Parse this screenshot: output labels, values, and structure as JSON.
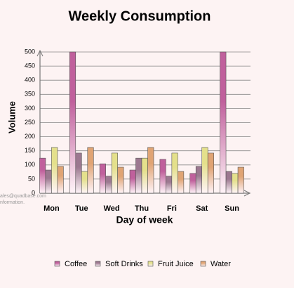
{
  "chart_data": {
    "type": "bar",
    "title": "Weekly Consumption",
    "x_label": "Day of week",
    "y_label": "Volume",
    "categories": [
      "Mon",
      "Tue",
      "Wed",
      "Thu",
      "Fri",
      "Sat",
      "Sun"
    ],
    "series": [
      {
        "name": "Coffee",
        "color": "#c0609c",
        "values": [
          124,
          500,
          104,
          82,
          120,
          70,
          500
        ]
      },
      {
        "name": "Soft Drinks",
        "color": "#9c7890",
        "values": [
          82,
          142,
          60,
          124,
          60,
          95,
          77
        ]
      },
      {
        "name": "Fruit Juice",
        "color": "#e4e08c",
        "values": [
          162,
          77,
          142,
          124,
          142,
          162,
          70
        ]
      },
      {
        "name": "Water",
        "color": "#e0a474",
        "values": [
          95,
          162,
          92,
          162,
          77,
          142,
          92
        ]
      }
    ],
    "ylim": [
      0,
      500
    ],
    "yticks": [
      0,
      50,
      100,
      150,
      200,
      250,
      300,
      350,
      400,
      450,
      500
    ],
    "grid": true,
    "legend": "bottom",
    "watermark": [
      "ales@quadbase.com",
      "nformation."
    ]
  }
}
